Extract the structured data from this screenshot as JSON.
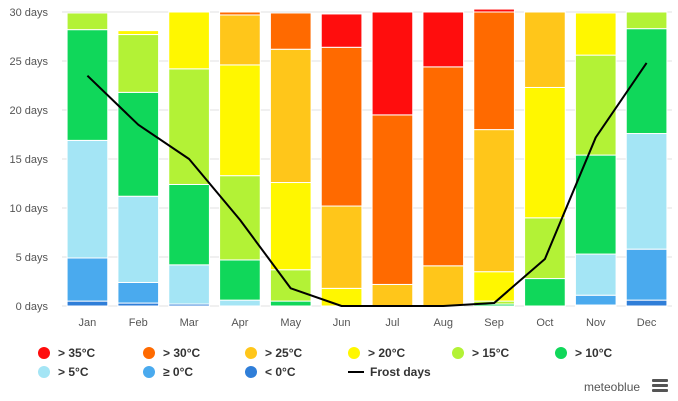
{
  "chart_data": {
    "type": "bar",
    "stacked": true,
    "ylim": [
      0,
      30
    ],
    "yticks": [
      "0 days",
      "5 days",
      "10 days",
      "15 days",
      "20 days",
      "25 days",
      "30 days"
    ],
    "categories": [
      "Jan",
      "Feb",
      "Mar",
      "Apr",
      "May",
      "Jun",
      "Jul",
      "Aug",
      "Sep",
      "Oct",
      "Nov",
      "Dec"
    ],
    "series": [
      {
        "name": "< 0°C",
        "color": "#2f7ed8",
        "values": [
          0.5,
          0.3,
          0.2,
          0,
          0,
          0,
          0,
          0,
          0,
          0,
          0.1,
          0.6
        ]
      },
      {
        "name": "≥ 0°C",
        "color": "#4aaaee",
        "values": [
          4.4,
          2.1,
          0,
          0,
          0,
          0,
          0,
          0,
          0,
          0,
          1.0,
          5.2
        ]
      },
      {
        "name": "> 5°C",
        "color": "#a4e5f5",
        "values": [
          12.0,
          8.8,
          4.0,
          0.6,
          0,
          0,
          0,
          0,
          0,
          0,
          4.2,
          11.8
        ]
      },
      {
        "name": "> 10°C",
        "color": "#10d75a",
        "values": [
          11.3,
          10.6,
          8.2,
          4.1,
          0.5,
          0,
          0,
          0,
          0.2,
          2.8,
          10.1,
          10.7
        ]
      },
      {
        "name": "> 15°C",
        "color": "#b3f236",
        "values": [
          1.7,
          5.9,
          11.8,
          8.6,
          3.2,
          0,
          0,
          0,
          0.3,
          6.2,
          10.2,
          1.7
        ]
      },
      {
        "name": "> 20°C",
        "color": "#fff700",
        "values": [
          0,
          0.4,
          5.8,
          11.3,
          8.9,
          1.8,
          0,
          0,
          3.0,
          13.3,
          4.3,
          0
        ]
      },
      {
        "name": "> 25°C",
        "color": "#ffc61a",
        "values": [
          0,
          0,
          0,
          5.1,
          13.6,
          8.4,
          2.2,
          4.1,
          14.5,
          7.7,
          0,
          0
        ]
      },
      {
        "name": "> 30°C",
        "color": "#ff6a00",
        "values": [
          0,
          0,
          0,
          0.3,
          3.7,
          16.2,
          17.3,
          20.3,
          12.0,
          0,
          0,
          0
        ]
      },
      {
        "name": "> 35°C",
        "color": "#ff0d0d",
        "values": [
          0,
          0,
          0,
          0,
          0,
          3.4,
          10.5,
          5.6,
          0.3,
          0,
          0,
          0
        ]
      }
    ],
    "line": {
      "name": "Frost days",
      "color": "#000000",
      "values": [
        23.5,
        18.5,
        15.0,
        8.8,
        1.8,
        0,
        0,
        0,
        0.3,
        4.8,
        17.2,
        24.8
      ]
    },
    "grid": true,
    "legend": "bottom"
  },
  "legend_items": [
    {
      "label": "> 35°C",
      "color": "#ff0d0d",
      "type": "dot"
    },
    {
      "label": "> 30°C",
      "color": "#ff6a00",
      "type": "dot"
    },
    {
      "label": "> 25°C",
      "color": "#ffc61a",
      "type": "dot"
    },
    {
      "label": "> 20°C",
      "color": "#fff700",
      "type": "dot"
    },
    {
      "label": "> 15°C",
      "color": "#b3f236",
      "type": "dot"
    },
    {
      "label": "> 10°C",
      "color": "#10d75a",
      "type": "dot"
    },
    {
      "label": "> 5°C",
      "color": "#a4e5f5",
      "type": "dot"
    },
    {
      "label": "≥ 0°C",
      "color": "#4aaaee",
      "type": "dot"
    },
    {
      "label": "< 0°C",
      "color": "#2f7ed8",
      "type": "dot"
    },
    {
      "label": "Frost days",
      "color": "#000000",
      "type": "line"
    }
  ],
  "branding": {
    "name": "meteoblue"
  },
  "menu": {
    "icon": "hamburger-menu-icon"
  }
}
